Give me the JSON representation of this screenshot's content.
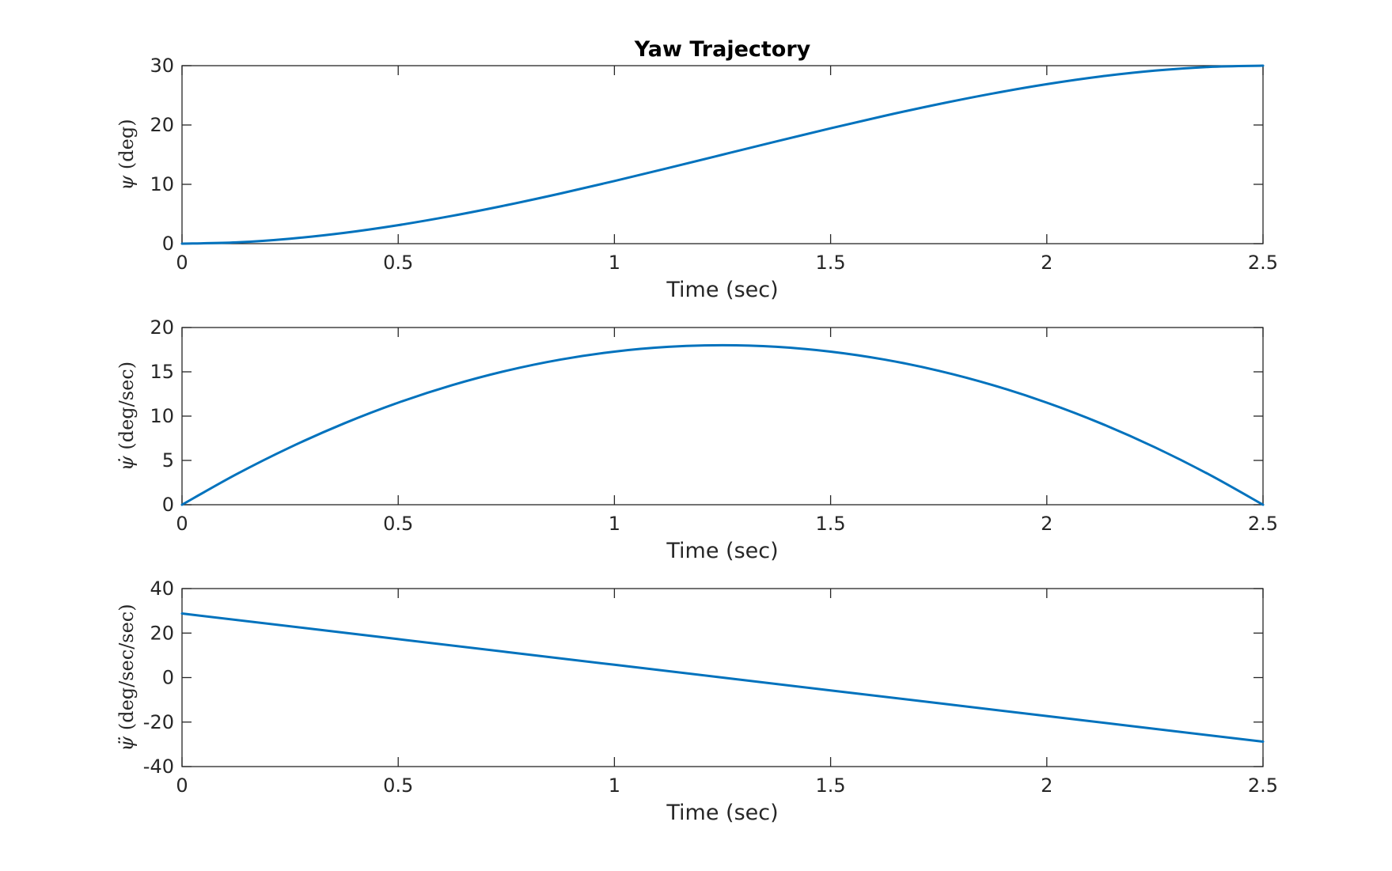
{
  "chart_data": [
    {
      "type": "line",
      "title": "Yaw Trajectory",
      "xlabel": "Time (sec)",
      "ylabel_symbol": "ψ",
      "ylabel_units": "(deg)",
      "xlim": [
        0,
        2.5
      ],
      "ylim": [
        0,
        30
      ],
      "x_ticks": [
        0,
        0.5,
        1,
        1.5,
        2,
        2.5
      ],
      "x_tick_labels": [
        "0",
        "0.5",
        "1",
        "1.5",
        "2",
        "2.5"
      ],
      "y_ticks": [
        0,
        10,
        20,
        30
      ],
      "y_tick_labels": [
        "0",
        "10",
        "20",
        "30"
      ],
      "grid": false,
      "series": [
        {
          "color": "#0072BD",
          "x": [
            0,
            0.125,
            0.25,
            0.375,
            0.5,
            0.625,
            0.75,
            0.875,
            1,
            1.125,
            1.25,
            1.375,
            1.5,
            1.625,
            1.75,
            1.875,
            2,
            2.125,
            2.25,
            2.375,
            2.5
          ],
          "y": [
            0,
            0.21,
            0.84,
            1.82,
            3.12,
            4.69,
            6.48,
            8.45,
            10.56,
            12.76,
            15.0,
            17.24,
            19.44,
            21.55,
            23.52,
            25.31,
            26.88,
            28.18,
            29.16,
            29.79,
            30.0
          ]
        }
      ]
    },
    {
      "type": "line",
      "title": "",
      "xlabel": "Time (sec)",
      "ylabel_symbol": "ψ̇",
      "ylabel_units": "(deg/sec)",
      "xlim": [
        0,
        2.5
      ],
      "ylim": [
        0,
        20
      ],
      "x_ticks": [
        0,
        0.5,
        1,
        1.5,
        2,
        2.5
      ],
      "x_tick_labels": [
        "0",
        "0.5",
        "1",
        "1.5",
        "2",
        "2.5"
      ],
      "y_ticks": [
        0,
        5,
        10,
        15,
        20
      ],
      "y_tick_labels": [
        "0",
        "5",
        "10",
        "15",
        "20"
      ],
      "grid": false,
      "series": [
        {
          "color": "#0072BD",
          "x": [
            0,
            0.125,
            0.25,
            0.375,
            0.5,
            0.625,
            0.75,
            0.875,
            1,
            1.125,
            1.25,
            1.375,
            1.5,
            1.625,
            1.75,
            1.875,
            2,
            2.125,
            2.25,
            2.375,
            2.5
          ],
          "y": [
            0,
            3.42,
            6.48,
            9.18,
            11.52,
            13.5,
            15.12,
            16.38,
            17.28,
            17.82,
            18.0,
            17.82,
            17.28,
            16.38,
            15.12,
            13.5,
            11.52,
            9.18,
            6.48,
            3.42,
            0
          ]
        }
      ]
    },
    {
      "type": "line",
      "title": "",
      "xlabel": "Time (sec)",
      "ylabel_symbol": "ψ̈",
      "ylabel_units": "(deg/sec/sec)",
      "xlim": [
        0,
        2.5
      ],
      "ylim": [
        -40,
        40
      ],
      "x_ticks": [
        0,
        0.5,
        1,
        1.5,
        2,
        2.5
      ],
      "x_tick_labels": [
        "0",
        "0.5",
        "1",
        "1.5",
        "2",
        "2.5"
      ],
      "y_ticks": [
        -40,
        -20,
        0,
        20,
        40
      ],
      "y_tick_labels": [
        "-40",
        "-20",
        "0",
        "20",
        "40"
      ],
      "grid": false,
      "series": [
        {
          "color": "#0072BD",
          "x": [
            0,
            0.5,
            1,
            1.5,
            2,
            2.5
          ],
          "y": [
            28.8,
            17.28,
            5.76,
            -5.76,
            -17.28,
            -28.8
          ]
        }
      ]
    }
  ]
}
